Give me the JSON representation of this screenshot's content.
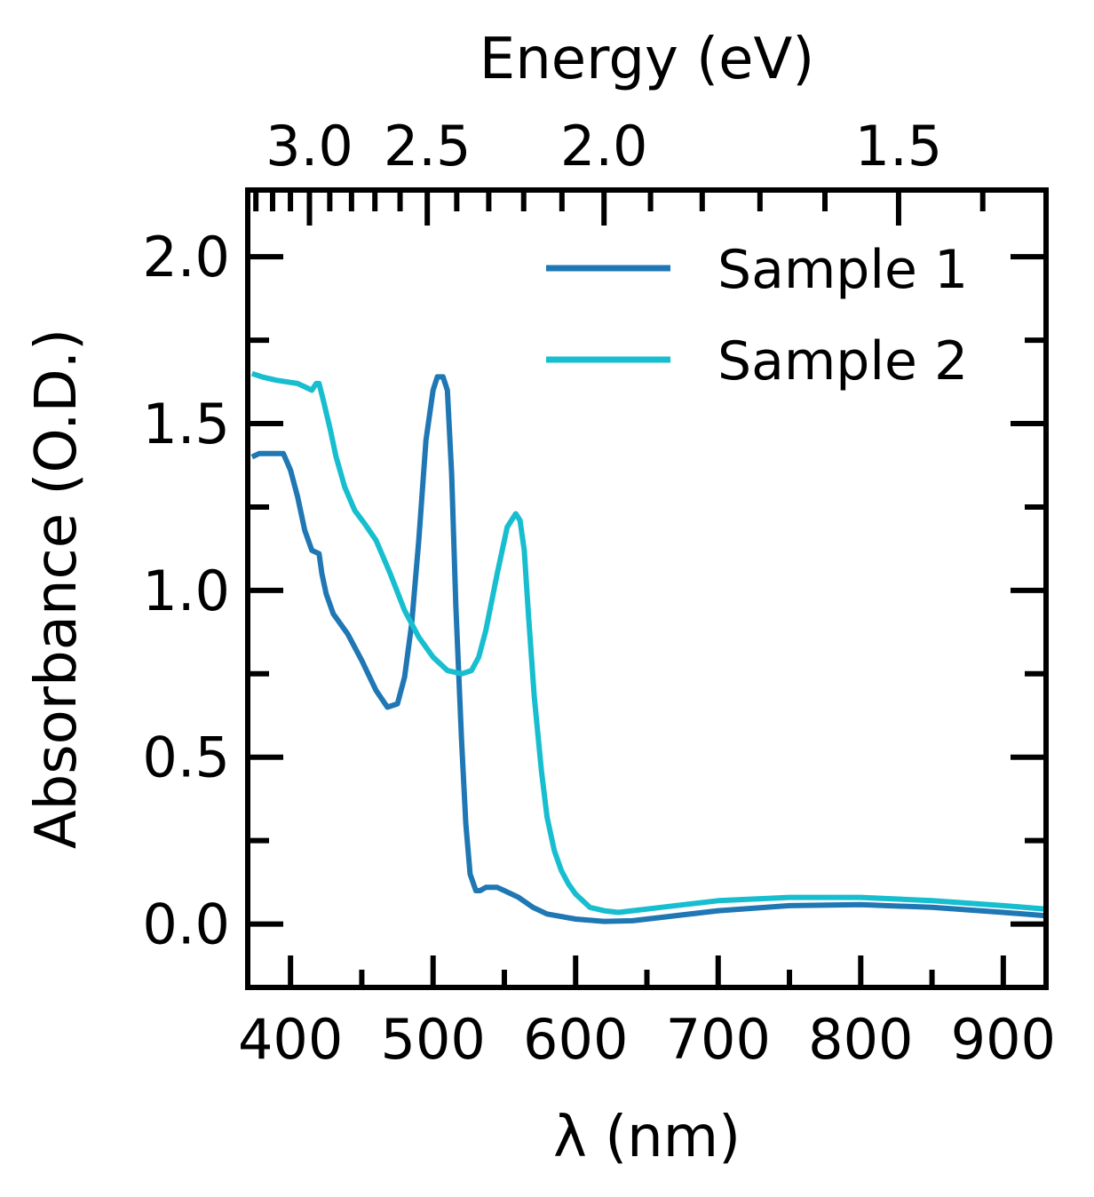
{
  "chart_data": {
    "type": "line",
    "xlabel": "λ (nm)",
    "ylabel": "Absorbance (O.D.)",
    "top_xlabel": "Energy (eV)",
    "xlim": [
      370,
      930
    ],
    "ylim": [
      -0.19,
      2.2
    ],
    "xticks": [
      400,
      500,
      600,
      700,
      800,
      900
    ],
    "xtick_labels": [
      "400",
      "500",
      "600",
      "700",
      "800",
      "900"
    ],
    "yticks": [
      0.0,
      0.5,
      1.0,
      1.5,
      2.0
    ],
    "ytick_labels": [
      "0.0",
      "0.5",
      "1.0",
      "1.5",
      "2.0"
    ],
    "top_ticks_ev": [
      3.0,
      2.5,
      2.0,
      1.5
    ],
    "top_tick_labels": [
      "3.0",
      "2.5",
      "2.0",
      "1.5"
    ],
    "top_minor_ticks_ev": [
      3.4,
      3.3,
      3.2,
      3.1,
      2.9,
      2.8,
      2.7,
      2.6,
      2.4,
      2.3,
      2.2,
      2.1,
      1.9,
      1.8,
      1.7,
      1.6,
      1.4
    ],
    "grid": false,
    "legend_position": "top-right",
    "series": [
      {
        "name": "Sample 1",
        "color": "#1f77b4",
        "x": [
          373,
          378,
          385,
          395,
          400,
          405,
          410,
          415,
          420,
          422,
          425,
          430,
          440,
          450,
          460,
          468,
          475,
          480,
          485,
          490,
          495,
          500,
          503,
          507,
          510,
          513,
          516,
          520,
          523,
          526,
          530,
          533,
          537,
          540,
          545,
          550,
          560,
          570,
          580,
          600,
          620,
          640,
          660,
          700,
          750,
          800,
          850,
          900,
          930
        ],
        "y": [
          1.4,
          1.41,
          1.41,
          1.41,
          1.36,
          1.28,
          1.18,
          1.12,
          1.11,
          1.05,
          0.99,
          0.93,
          0.87,
          0.79,
          0.7,
          0.65,
          0.66,
          0.74,
          0.9,
          1.15,
          1.45,
          1.6,
          1.64,
          1.64,
          1.6,
          1.35,
          0.95,
          0.55,
          0.3,
          0.15,
          0.1,
          0.1,
          0.11,
          0.11,
          0.11,
          0.1,
          0.08,
          0.05,
          0.03,
          0.015,
          0.008,
          0.01,
          0.02,
          0.04,
          0.055,
          0.058,
          0.05,
          0.035,
          0.025
        ]
      },
      {
        "name": "Sample 2",
        "color": "#17becf",
        "x": [
          373,
          380,
          390,
          405,
          415,
          418,
          420,
          423,
          428,
          432,
          438,
          445,
          452,
          460,
          470,
          480,
          490,
          500,
          510,
          520,
          527,
          532,
          537,
          545,
          552,
          558,
          561,
          564,
          567,
          571,
          576,
          580,
          585,
          590,
          595,
          600,
          610,
          620,
          630,
          640,
          660,
          700,
          750,
          800,
          850,
          900,
          930
        ],
        "y": [
          1.65,
          1.64,
          1.63,
          1.62,
          1.6,
          1.62,
          1.62,
          1.57,
          1.48,
          1.4,
          1.31,
          1.24,
          1.2,
          1.15,
          1.05,
          0.94,
          0.86,
          0.8,
          0.76,
          0.75,
          0.76,
          0.8,
          0.88,
          1.05,
          1.19,
          1.23,
          1.21,
          1.12,
          0.92,
          0.68,
          0.46,
          0.32,
          0.22,
          0.16,
          0.12,
          0.09,
          0.05,
          0.04,
          0.035,
          0.04,
          0.05,
          0.07,
          0.08,
          0.08,
          0.07,
          0.055,
          0.045
        ]
      }
    ]
  }
}
